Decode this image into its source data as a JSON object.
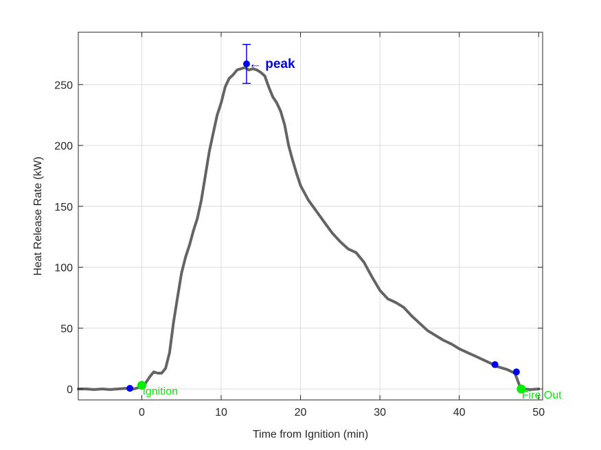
{
  "chart_data": {
    "type": "line",
    "title": "",
    "xlabel": "Time from Ignition (min)",
    "ylabel": "Heat Release Rate (kW)",
    "xlim": [
      -8,
      50.5
    ],
    "ylim": [
      -9,
      293
    ],
    "xticks": [
      0,
      10,
      20,
      30,
      40,
      50
    ],
    "yticks": [
      0,
      50,
      100,
      150,
      200,
      250
    ],
    "grid": true,
    "colors": {
      "line": "#646464",
      "marker_blue": "#0000ee",
      "marker_green": "#00ee00",
      "axis": "#262626",
      "grid": "#dcdcdc"
    },
    "series": [
      {
        "x": [
          -8,
          -7,
          -6,
          -5,
          -4,
          -3,
          -2,
          -1,
          -0.5,
          0,
          0.5,
          1,
          1.5,
          2,
          2.5,
          3,
          3.5,
          4,
          4.5,
          5,
          5.5,
          6,
          6.5,
          7,
          7.5,
          8,
          8.5,
          9,
          9.5,
          10,
          10.5,
          11,
          11.5,
          12,
          12.5,
          13,
          13.5,
          14,
          14.5,
          15,
          15.5,
          16,
          16.5,
          17,
          17.5,
          18,
          18.5,
          19,
          19.5,
          20,
          21,
          22,
          23,
          24,
          25,
          26,
          27,
          28,
          29,
          30,
          31,
          32,
          33,
          34,
          35,
          36,
          37,
          38,
          39,
          40,
          41,
          42,
          43,
          44,
          44.5,
          45,
          46,
          47,
          47.3,
          47.7,
          48,
          49,
          50
        ],
        "y": [
          0,
          0,
          -0.5,
          0,
          -0.5,
          0,
          0.5,
          0,
          1,
          3,
          5,
          10,
          14,
          13,
          13,
          17,
          30,
          55,
          75,
          95,
          108,
          118,
          130,
          140,
          155,
          175,
          195,
          210,
          225,
          235,
          248,
          255,
          258,
          262,
          263,
          264,
          262,
          263,
          262,
          260,
          257,
          248,
          240,
          235,
          228,
          217,
          200,
          188,
          177,
          167,
          155,
          146,
          137,
          128,
          121,
          115,
          112,
          104,
          92,
          81,
          74,
          71,
          67,
          60,
          54,
          48,
          44,
          40,
          37,
          33,
          30,
          27,
          24,
          21,
          19,
          18,
          16,
          13,
          8,
          1,
          0,
          -0.5,
          0
        ]
      }
    ],
    "markers": [
      {
        "label": "",
        "x": -1.5,
        "y": 0.5,
        "color": "blue"
      },
      {
        "label": "Ignition",
        "x": 0,
        "y": 3,
        "color": "green"
      },
      {
        "label": "peak",
        "x": 13.2,
        "y": 267,
        "color": "blue",
        "error": [
          251,
          283
        ]
      },
      {
        "label": "",
        "x": 44.5,
        "y": 20,
        "color": "blue"
      },
      {
        "label": "",
        "x": 47.2,
        "y": 14,
        "color": "blue"
      },
      {
        "label": "Fire Out",
        "x": 47.8,
        "y": 0,
        "color": "green"
      }
    ]
  }
}
